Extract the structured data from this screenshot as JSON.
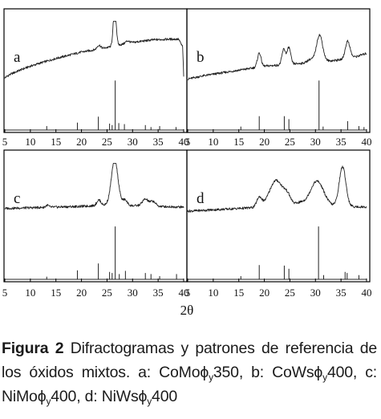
{
  "chart_data": {
    "type": "line",
    "panels": [
      {
        "label": "a",
        "xlim": [
          5,
          40
        ],
        "xticks": [
          "5",
          "10",
          "15",
          "20",
          "25",
          "30",
          "35",
          "40"
        ],
        "series": [
          {
            "kind": "measured",
            "baseline": [
              [
                5,
                0.12
              ],
              [
                6,
                0.17
              ],
              [
                8,
                0.24
              ],
              [
                10,
                0.3
              ],
              [
                12,
                0.35
              ],
              [
                15,
                0.42
              ],
              [
                18,
                0.48
              ],
              [
                20,
                0.52
              ],
              [
                23,
                0.56
              ],
              [
                25,
                0.59
              ],
              [
                28,
                0.64
              ],
              [
                31,
                0.68
              ],
              [
                34,
                0.71
              ],
              [
                37,
                0.72
              ],
              [
                39,
                0.72
              ],
              [
                39.8,
                0.6
              ],
              [
                40,
                0.15
              ]
            ],
            "peaks": [
              [
                26.5,
                0.62,
                0.28
              ],
              [
                23.4,
                0.06,
                0.35
              ],
              [
                29.0,
                0.04,
                0.4
              ]
            ]
          },
          {
            "kind": "reference",
            "sticks": [
              [
                13.2,
                0.08
              ],
              [
                19.2,
                0.15
              ],
              [
                23.3,
                0.27
              ],
              [
                25.5,
                0.13
              ],
              [
                26.0,
                0.1
              ],
              [
                26.6,
                1.0
              ],
              [
                27.3,
                0.14
              ],
              [
                28.4,
                0.12
              ],
              [
                32.5,
                0.1
              ],
              [
                33.6,
                0.06
              ],
              [
                35.3,
                0.08
              ],
              [
                38.5,
                0.06
              ]
            ]
          }
        ]
      },
      {
        "label": "b",
        "xlim": [
          5,
          40
        ],
        "xticks": [
          "5",
          "10",
          "15",
          "20",
          "25",
          "30",
          "35",
          "40"
        ],
        "series": [
          {
            "kind": "measured",
            "baseline": [
              [
                5,
                0.1
              ],
              [
                8,
                0.15
              ],
              [
                12,
                0.2
              ],
              [
                16,
                0.25
              ],
              [
                20,
                0.3
              ],
              [
                25,
                0.33
              ],
              [
                30,
                0.36
              ],
              [
                35,
                0.4
              ],
              [
                38,
                0.45
              ],
              [
                40,
                0.5
              ]
            ],
            "peaks": [
              [
                19.0,
                0.22,
                0.35
              ],
              [
                23.8,
                0.24,
                0.35
              ],
              [
                24.8,
                0.26,
                0.35
              ],
              [
                30.8,
                0.42,
                0.6
              ],
              [
                36.3,
                0.27,
                0.45
              ],
              [
                29.0,
                0.05,
                0.6
              ]
            ]
          },
          {
            "kind": "reference",
            "sticks": [
              [
                15.4,
                0.07
              ],
              [
                19.0,
                0.28
              ],
              [
                23.9,
                0.28
              ],
              [
                24.8,
                0.22
              ],
              [
                30.7,
                1.0
              ],
              [
                31.5,
                0.07
              ],
              [
                36.3,
                0.18
              ],
              [
                38.5,
                0.08
              ],
              [
                39.5,
                0.06
              ]
            ]
          }
        ]
      },
      {
        "label": "c",
        "xlim": [
          5,
          40
        ],
        "xticks": [
          "5",
          "10",
          "15",
          "20",
          "25",
          "30",
          "35",
          "40"
        ],
        "series": [
          {
            "kind": "measured",
            "baseline": [
              [
                5,
                0.34
              ],
              [
                10,
                0.35
              ],
              [
                15,
                0.36
              ],
              [
                20,
                0.37
              ],
              [
                25,
                0.39
              ],
              [
                30,
                0.38
              ],
              [
                35,
                0.37
              ],
              [
                40,
                0.36
              ]
            ],
            "peaks": [
              [
                26.5,
                0.66,
                0.65
              ],
              [
                23.4,
                0.08,
                0.4
              ],
              [
                28.5,
                0.08,
                0.45
              ],
              [
                32.5,
                0.1,
                0.6
              ],
              [
                34.0,
                0.07,
                0.5
              ],
              [
                13.3,
                0.03,
                0.3
              ]
            ]
          },
          {
            "kind": "reference",
            "sticks": [
              [
                13.2,
                0.05
              ],
              [
                19.2,
                0.17
              ],
              [
                23.3,
                0.3
              ],
              [
                25.5,
                0.14
              ],
              [
                26.0,
                0.12
              ],
              [
                26.6,
                1.0
              ],
              [
                27.4,
                0.1
              ],
              [
                28.6,
                0.16
              ],
              [
                32.5,
                0.12
              ],
              [
                33.6,
                0.1
              ],
              [
                35.3,
                0.06
              ],
              [
                38.6,
                0.1
              ]
            ]
          }
        ]
      },
      {
        "label": "d",
        "xlim": [
          5,
          40
        ],
        "xticks": [
          "5",
          "10",
          "15",
          "20",
          "25",
          "30",
          "35",
          "40"
        ],
        "series": [
          {
            "kind": "measured",
            "baseline": [
              [
                5,
                0.3
              ],
              [
                10,
                0.32
              ],
              [
                15,
                0.34
              ],
              [
                20,
                0.36
              ],
              [
                25,
                0.38
              ],
              [
                30,
                0.38
              ],
              [
                35,
                0.37
              ],
              [
                40,
                0.36
              ]
            ],
            "peaks": [
              [
                19.0,
                0.14,
                0.5
              ],
              [
                22.3,
                0.38,
                1.3
              ],
              [
                24.5,
                0.12,
                0.7
              ],
              [
                30.3,
                0.36,
                1.3
              ],
              [
                35.3,
                0.58,
                0.65
              ],
              [
                27.0,
                0.04,
                0.8
              ]
            ]
          },
          {
            "kind": "reference",
            "sticks": [
              [
                15.4,
                0.06
              ],
              [
                19.0,
                0.27
              ],
              [
                23.9,
                0.26
              ],
              [
                24.8,
                0.2
              ],
              [
                30.6,
                1.0
              ],
              [
                31.6,
                0.08
              ],
              [
                35.8,
                0.14
              ],
              [
                36.2,
                0.12
              ],
              [
                38.5,
                0.08
              ]
            ]
          }
        ]
      }
    ],
    "xlabel": "2θ",
    "grid": false,
    "legend": "none"
  },
  "caption": {
    "label": "Figura 2",
    "text_main": " Difractogramas y patrones de referencia de los óxidos mixtos. a: CoMo",
    "phi": "ϕ",
    "sub_y": "y",
    "temp_a": "350",
    "sep_b": ", b: CoWs",
    "temp_b": "400",
    "sep_c": ", c: NiMo",
    "temp_c": "400",
    "sep_d": ", d: NiWs",
    "temp_d": "400"
  }
}
